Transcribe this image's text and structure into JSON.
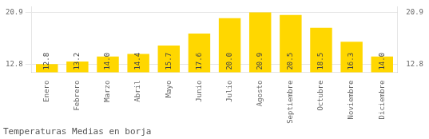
{
  "chart_data": {
    "type": "bar",
    "title": "Temperaturas Medias en borja",
    "categories": [
      "Enero",
      "Febrero",
      "Marzo",
      "Abril",
      "Mayo",
      "Junio",
      "Julio",
      "Agosto",
      "Septiembre",
      "Octubre",
      "Noviembre",
      "Diciembre"
    ],
    "values": [
      12.8,
      13.2,
      14.0,
      14.4,
      15.7,
      17.6,
      20.0,
      20.9,
      20.5,
      18.5,
      16.3,
      14.0
    ],
    "value_labels": [
      "12.8",
      "13.2",
      "14.0",
      "14.4",
      "15.7",
      "17.6",
      "20.0",
      "20.9",
      "20.5",
      "18.5",
      "16.3",
      "14.0"
    ],
    "color": "#FFD700",
    "ylim": [
      11.5,
      21.8
    ],
    "yticks": [
      12.8,
      20.9
    ],
    "y2lim": [
      11.5,
      21.8
    ],
    "y2ticks": [
      12.8,
      20.9
    ],
    "grid": true,
    "data_labels": true
  }
}
